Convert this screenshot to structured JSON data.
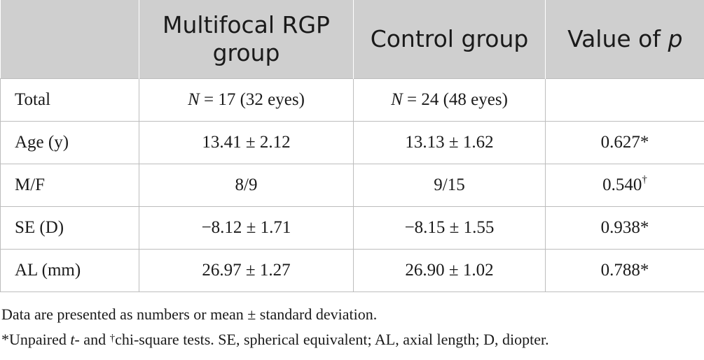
{
  "table": {
    "headers": {
      "col0": "",
      "col1": "Multifocal RGP group",
      "col2": "Control group",
      "col3_prefix": "Value of ",
      "col3_var": "p"
    },
    "rows": [
      {
        "label": "Total",
        "group1_var": "N",
        "group1_rest": " = 17 (32 eyes)",
        "group2_var": "N",
        "group2_rest": " = 24 (48 eyes)",
        "p_value": "",
        "p_mark": ""
      },
      {
        "label": "Age (y)",
        "group1": "13.41 ± 2.12",
        "group2": "13.13 ± 1.62",
        "p_value": "0.627",
        "p_mark": "*"
      },
      {
        "label": "M/F",
        "group1": "8/9",
        "group2": "9/15",
        "p_value": "0.540",
        "p_mark": "†"
      },
      {
        "label": "SE (D)",
        "group1": "−8.12 ± 1.71",
        "group2": "−8.15 ± 1.55",
        "p_value": "0.938",
        "p_mark": "*"
      },
      {
        "label": "AL (mm)",
        "group1": "26.97 ± 1.27",
        "group2": "26.90 ± 1.02",
        "p_value": "0.788",
        "p_mark": "*"
      }
    ]
  },
  "notes": {
    "line1": "Data are presented as numbers or mean ± standard deviation.",
    "line2_a": "*Unpaired ",
    "line2_t": "t",
    "line2_b": "- and ",
    "line2_dagger": "†",
    "line2_c": "chi-square tests. SE, spherical equivalent; AL, axial length; D, diopter."
  }
}
